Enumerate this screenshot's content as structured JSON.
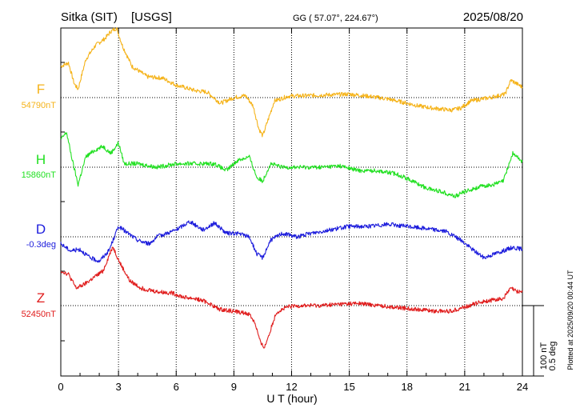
{
  "header": {
    "station": "Sitka (SIT)",
    "source": "[USGS]",
    "coords": "GG ( 57.07°, 224.67°)",
    "date": "2025/08/20"
  },
  "footer": {
    "plotted": "Plotted at 2025/09/20 00:44 UT"
  },
  "scale_bar": {
    "label1": "100 nT",
    "label2": "0.5 deg"
  },
  "colors": {
    "F": "#f5b31a",
    "H": "#22e022",
    "D": "#1c1cdc",
    "Z": "#e01c1c"
  },
  "chart_data": {
    "type": "line",
    "xlabel": "U T (hour)",
    "xlim": [
      0,
      24
    ],
    "xticks": [
      0,
      3,
      6,
      9,
      12,
      15,
      18,
      21,
      24
    ],
    "grid": true,
    "series": [
      {
        "name": "F",
        "baseline_label": "54790nT",
        "points": [
          [
            0,
            0.45
          ],
          [
            0.4,
            0.5
          ],
          [
            0.7,
            0.2
          ],
          [
            0.9,
            0.12
          ],
          [
            1.3,
            0.55
          ],
          [
            1.8,
            0.75
          ],
          [
            2.3,
            0.85
          ],
          [
            2.6,
            0.95
          ],
          [
            2.9,
            1.0
          ],
          [
            3.2,
            0.75
          ],
          [
            3.7,
            0.45
          ],
          [
            4.5,
            0.3
          ],
          [
            5.3,
            0.28
          ],
          [
            6.0,
            0.18
          ],
          [
            7.0,
            0.1
          ],
          [
            7.6,
            0.08
          ],
          [
            8.3,
            -0.08
          ],
          [
            9.0,
            0.0
          ],
          [
            9.6,
            0.03
          ],
          [
            10.0,
            -0.12
          ],
          [
            10.3,
            -0.45
          ],
          [
            10.5,
            -0.55
          ],
          [
            10.8,
            -0.3
          ],
          [
            11.1,
            -0.05
          ],
          [
            11.8,
            0.02
          ],
          [
            13,
            0.03
          ],
          [
            14,
            0.04
          ],
          [
            15,
            0.05
          ],
          [
            16,
            0.02
          ],
          [
            17,
            -0.02
          ],
          [
            18,
            -0.08
          ],
          [
            18.6,
            -0.12
          ],
          [
            19.3,
            -0.15
          ],
          [
            20.3,
            -0.18
          ],
          [
            20.8,
            -0.15
          ],
          [
            21.3,
            -0.05
          ],
          [
            22.3,
            0.0
          ],
          [
            23.1,
            0.05
          ],
          [
            23.4,
            0.25
          ],
          [
            23.7,
            0.2
          ],
          [
            24.0,
            0.15
          ]
        ]
      },
      {
        "name": "H",
        "baseline_label": "15860nT",
        "points": [
          [
            0,
            0.4
          ],
          [
            0.3,
            0.5
          ],
          [
            0.6,
            0.1
          ],
          [
            0.9,
            -0.25
          ],
          [
            1.3,
            0.15
          ],
          [
            1.8,
            0.25
          ],
          [
            2.2,
            0.3
          ],
          [
            2.6,
            0.2
          ],
          [
            3.0,
            0.35
          ],
          [
            3.3,
            0.05
          ],
          [
            4,
            0.05
          ],
          [
            5,
            0.0
          ],
          [
            6,
            0.05
          ],
          [
            7,
            0.05
          ],
          [
            8,
            0.05
          ],
          [
            8.6,
            -0.05
          ],
          [
            9.2,
            0.1
          ],
          [
            9.8,
            0.15
          ],
          [
            10.2,
            -0.15
          ],
          [
            10.5,
            -0.2
          ],
          [
            10.9,
            0.05
          ],
          [
            11.5,
            0.0
          ],
          [
            12.5,
            0.0
          ],
          [
            13.5,
            0.0
          ],
          [
            14.5,
            0.02
          ],
          [
            15.5,
            -0.05
          ],
          [
            16.5,
            -0.05
          ],
          [
            17.5,
            -0.1
          ],
          [
            18.3,
            -0.2
          ],
          [
            19.0,
            -0.3
          ],
          [
            19.8,
            -0.35
          ],
          [
            20.5,
            -0.42
          ],
          [
            21.0,
            -0.35
          ],
          [
            21.8,
            -0.28
          ],
          [
            22.5,
            -0.25
          ],
          [
            23.0,
            -0.2
          ],
          [
            23.5,
            0.2
          ],
          [
            24.0,
            0.08
          ]
        ]
      },
      {
        "name": "D",
        "baseline_label": "-0.3deg",
        "points": [
          [
            0,
            -0.1
          ],
          [
            0.5,
            -0.2
          ],
          [
            1.0,
            -0.18
          ],
          [
            1.5,
            -0.3
          ],
          [
            2.0,
            -0.35
          ],
          [
            2.5,
            -0.2
          ],
          [
            3.0,
            0.15
          ],
          [
            3.5,
            0.05
          ],
          [
            4,
            -0.05
          ],
          [
            4.6,
            -0.1
          ],
          [
            5,
            0.0
          ],
          [
            5.5,
            0.05
          ],
          [
            6,
            0.1
          ],
          [
            6.7,
            0.22
          ],
          [
            7.4,
            0.1
          ],
          [
            8.0,
            0.2
          ],
          [
            8.6,
            0.05
          ],
          [
            9.2,
            0.05
          ],
          [
            9.8,
            0.0
          ],
          [
            10.2,
            -0.25
          ],
          [
            10.5,
            -0.3
          ],
          [
            10.9,
            -0.05
          ],
          [
            11.5,
            0.05
          ],
          [
            12.3,
            0.0
          ],
          [
            13,
            0.05
          ],
          [
            14,
            0.1
          ],
          [
            15,
            0.15
          ],
          [
            16,
            0.15
          ],
          [
            17,
            0.18
          ],
          [
            18,
            0.15
          ],
          [
            19,
            0.12
          ],
          [
            20,
            0.08
          ],
          [
            20.8,
            -0.05
          ],
          [
            21.5,
            -0.2
          ],
          [
            22.0,
            -0.3
          ],
          [
            22.5,
            -0.25
          ],
          [
            23.0,
            -0.2
          ],
          [
            23.5,
            -0.15
          ],
          [
            24.0,
            -0.18
          ]
        ]
      },
      {
        "name": "Z",
        "baseline_label": "52450nT",
        "points": [
          [
            0,
            0.5
          ],
          [
            0.4,
            0.45
          ],
          [
            0.8,
            0.25
          ],
          [
            1.2,
            0.3
          ],
          [
            1.7,
            0.4
          ],
          [
            2.2,
            0.5
          ],
          [
            2.7,
            0.85
          ],
          [
            3.1,
            0.6
          ],
          [
            3.6,
            0.35
          ],
          [
            4.2,
            0.25
          ],
          [
            5,
            0.2
          ],
          [
            5.8,
            0.18
          ],
          [
            6.4,
            0.12
          ],
          [
            7.0,
            0.1
          ],
          [
            7.6,
            0.05
          ],
          [
            8.2,
            -0.05
          ],
          [
            9.0,
            -0.08
          ],
          [
            9.8,
            -0.12
          ],
          [
            10.1,
            -0.25
          ],
          [
            10.4,
            -0.55
          ],
          [
            10.6,
            -0.6
          ],
          [
            10.9,
            -0.35
          ],
          [
            11.2,
            -0.1
          ],
          [
            11.8,
            -0.02
          ],
          [
            12.5,
            0.0
          ],
          [
            13.5,
            0.0
          ],
          [
            14.5,
            0.02
          ],
          [
            15.5,
            0.03
          ],
          [
            16.5,
            0.0
          ],
          [
            17.5,
            -0.03
          ],
          [
            18.5,
            -0.05
          ],
          [
            19.5,
            -0.08
          ],
          [
            20.3,
            -0.08
          ],
          [
            21.0,
            -0.02
          ],
          [
            21.8,
            0.05
          ],
          [
            22.5,
            0.08
          ],
          [
            23.0,
            0.1
          ],
          [
            23.4,
            0.25
          ],
          [
            23.7,
            0.2
          ],
          [
            24.0,
            0.2
          ]
        ]
      }
    ]
  }
}
